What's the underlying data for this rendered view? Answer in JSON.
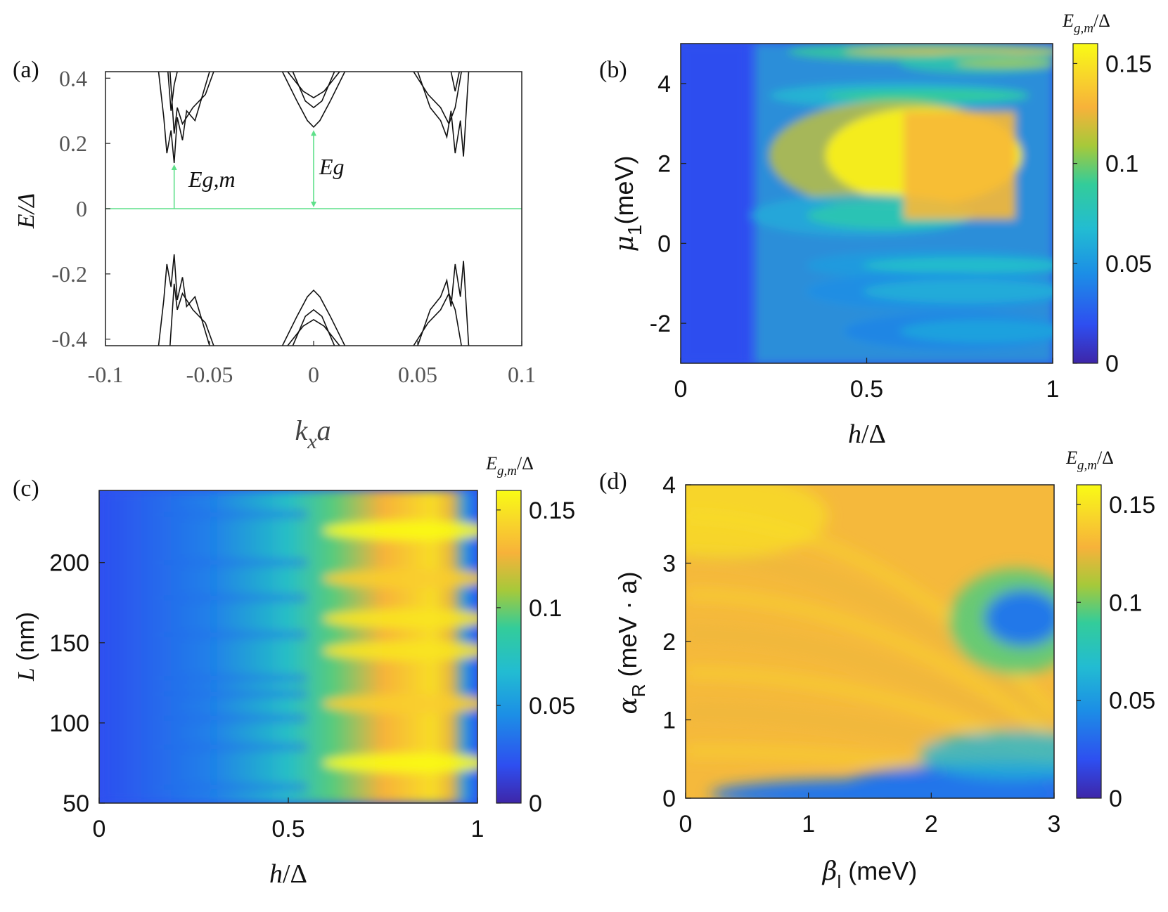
{
  "chart_data": [
    {
      "panel": "(a)",
      "type": "line",
      "xlabel": "k_x a",
      "ylabel": "E/Δ",
      "xlim": [
        -0.1,
        0.1
      ],
      "ylim": [
        -0.42,
        0.42
      ],
      "x_ticks": [
        "-0.1",
        "-0.05",
        "0",
        "0.05",
        "0.1"
      ],
      "y_ticks": [
        "0.4",
        "0.2",
        "0",
        "-0.2",
        "-0.4"
      ],
      "annotations": [
        {
          "text": "Eg,m",
          "x": -0.067,
          "y": 0.14,
          "meaning": "minimum gap at finite k"
        },
        {
          "text": "Eg",
          "x": 0.0,
          "y": 0.245,
          "meaning": "gap at k=0"
        }
      ],
      "zero_line": {
        "y": 0,
        "color": "#5fe08a"
      },
      "arrow_color": "#5fe08a",
      "series": [
        {
          "values": [
            [
              -0.0745,
              0.42
            ],
            [
              -0.072,
              0.28
            ],
            [
              -0.0705,
              0.17
            ],
            [
              -0.0685,
              0.24
            ],
            [
              -0.067,
              0.14
            ],
            [
              -0.0655,
              0.28
            ],
            [
              -0.063,
              0.21
            ],
            [
              -0.061,
              0.3
            ],
            [
              -0.057,
              0.27
            ],
            [
              -0.05,
              0.42
            ]
          ]
        },
        {
          "values": [
            [
              -0.069,
              0.42
            ],
            [
              -0.067,
              0.23
            ],
            [
              -0.0655,
              0.31
            ],
            [
              -0.063,
              0.26
            ],
            [
              -0.058,
              0.31
            ],
            [
              -0.052,
              0.35
            ],
            [
              -0.048,
              0.42
            ]
          ]
        },
        {
          "values": [
            [
              -0.07,
              0.42
            ],
            [
              -0.0685,
              0.3
            ],
            [
              -0.067,
              0.38
            ],
            [
              -0.0655,
              0.42
            ]
          ]
        },
        {
          "values": [
            [
              -0.015,
              0.42
            ],
            [
              -0.008,
              0.33
            ],
            [
              -0.003,
              0.27
            ],
            [
              0.0,
              0.25
            ],
            [
              0.003,
              0.27
            ],
            [
              0.008,
              0.33
            ],
            [
              0.015,
              0.42
            ]
          ]
        },
        {
          "values": [
            [
              -0.01,
              0.42
            ],
            [
              -0.004,
              0.33
            ],
            [
              0.0,
              0.31
            ],
            [
              0.004,
              0.33
            ],
            [
              0.01,
              0.42
            ]
          ]
        },
        {
          "values": [
            [
              -0.0125,
              0.42
            ],
            [
              -0.005,
              0.36
            ],
            [
              0.0,
              0.34
            ],
            [
              0.005,
              0.36
            ],
            [
              0.0125,
              0.42
            ]
          ]
        },
        {
          "values": [
            [
              0.05,
              0.42
            ],
            [
              0.056,
              0.31
            ],
            [
              0.061,
              0.27
            ],
            [
              0.064,
              0.22
            ],
            [
              0.066,
              0.3
            ],
            [
              0.068,
              0.17
            ],
            [
              0.0705,
              0.27
            ],
            [
              0.072,
              0.16
            ],
            [
              0.0745,
              0.42
            ]
          ]
        },
        {
          "values": [
            [
              0.048,
              0.42
            ],
            [
              0.055,
              0.35
            ],
            [
              0.061,
              0.31
            ],
            [
              0.065,
              0.26
            ],
            [
              0.068,
              0.31
            ],
            [
              0.071,
              0.42
            ]
          ]
        },
        {
          "values": [
            [
              0.066,
              0.42
            ],
            [
              0.068,
              0.36
            ],
            [
              0.07,
              0.42
            ]
          ]
        },
        {
          "values": [
            [
              -0.0745,
              -0.42
            ],
            [
              -0.072,
              -0.28
            ],
            [
              -0.0705,
              -0.17
            ],
            [
              -0.0685,
              -0.24
            ],
            [
              -0.067,
              -0.14
            ],
            [
              -0.0655,
              -0.28
            ],
            [
              -0.063,
              -0.21
            ],
            [
              -0.061,
              -0.3
            ],
            [
              -0.057,
              -0.27
            ],
            [
              -0.05,
              -0.42
            ]
          ]
        },
        {
          "values": [
            [
              -0.069,
              -0.42
            ],
            [
              -0.067,
              -0.23
            ],
            [
              -0.0655,
              -0.31
            ],
            [
              -0.063,
              -0.26
            ],
            [
              -0.058,
              -0.31
            ],
            [
              -0.052,
              -0.35
            ],
            [
              -0.048,
              -0.42
            ]
          ]
        },
        {
          "values": [
            [
              -0.015,
              -0.42
            ],
            [
              -0.008,
              -0.33
            ],
            [
              -0.003,
              -0.27
            ],
            [
              0.0,
              -0.25
            ],
            [
              0.003,
              -0.27
            ],
            [
              0.008,
              -0.33
            ],
            [
              0.015,
              -0.42
            ]
          ]
        },
        {
          "values": [
            [
              -0.01,
              -0.42
            ],
            [
              -0.004,
              -0.33
            ],
            [
              0.0,
              -0.31
            ],
            [
              0.004,
              -0.33
            ],
            [
              0.01,
              -0.42
            ]
          ]
        },
        {
          "values": [
            [
              -0.0125,
              -0.42
            ],
            [
              -0.005,
              -0.36
            ],
            [
              0.0,
              -0.34
            ],
            [
              0.005,
              -0.36
            ],
            [
              0.0125,
              -0.42
            ]
          ]
        },
        {
          "values": [
            [
              0.05,
              -0.42
            ],
            [
              0.056,
              -0.31
            ],
            [
              0.061,
              -0.27
            ],
            [
              0.064,
              -0.22
            ],
            [
              0.066,
              -0.3
            ],
            [
              0.068,
              -0.17
            ],
            [
              0.0705,
              -0.27
            ],
            [
              0.072,
              -0.16
            ],
            [
              0.0745,
              -0.42
            ]
          ]
        },
        {
          "values": [
            [
              0.048,
              -0.42
            ],
            [
              0.055,
              -0.35
            ],
            [
              0.061,
              -0.31
            ],
            [
              0.065,
              -0.26
            ],
            [
              0.068,
              -0.31
            ],
            [
              0.071,
              -0.42
            ]
          ]
        }
      ]
    },
    {
      "panel": "(b)",
      "type": "heatmap",
      "xlabel": "h/Δ",
      "ylabel": "μ_1(meV)",
      "xlim": [
        0,
        1
      ],
      "ylim": [
        -3,
        5
      ],
      "x_ticks": [
        "0",
        "0.5",
        "1"
      ],
      "y_ticks": [
        "4",
        "2",
        "0",
        "-2"
      ],
      "colorbar": {
        "title": "E_g,m/Δ",
        "range": [
          0,
          0.16
        ],
        "ticks": [
          "0.15",
          "0.1",
          "0.05",
          "0"
        ]
      },
      "bands": [
        {
          "y": 4.8,
          "x0": 0.25,
          "x1": 1.0,
          "value": 0.12,
          "sigma": 0.08
        },
        {
          "y": 4.5,
          "x0": 0.55,
          "x1": 0.97,
          "value": 0.11,
          "sigma": 0.05
        },
        {
          "y": 3.7,
          "x0": 0.2,
          "x1": 0.9,
          "value": 0.09,
          "sigma": 0.15
        },
        {
          "y": 2.2,
          "x0": 0.2,
          "x1": 0.88,
          "value": 0.155,
          "sigma": 1.2
        },
        {
          "y": 0.7,
          "x0": 0.15,
          "x1": 0.75,
          "value": 0.08,
          "sigma": 0.35
        },
        {
          "y": -0.55,
          "x0": 0.3,
          "x1": 1.0,
          "value": 0.07,
          "sigma": 0.2
        },
        {
          "y": -1.2,
          "x0": 0.3,
          "x1": 1.0,
          "value": 0.06,
          "sigma": 0.3
        },
        {
          "y": -2.2,
          "x0": 0.4,
          "x1": 1.0,
          "value": 0.055,
          "sigma": 0.3
        }
      ]
    },
    {
      "panel": "(c)",
      "type": "heatmap",
      "xlabel": "h/Δ",
      "ylabel": "L (nm)",
      "xlim": [
        0,
        1
      ],
      "ylim": [
        50,
        245
      ],
      "x_ticks": [
        "0",
        "0.5",
        "1"
      ],
      "y_ticks": [
        "200",
        "150",
        "100",
        "50"
      ],
      "colorbar": {
        "title": "E_g,m/Δ",
        "range": [
          0,
          0.16
        ],
        "ticks": [
          "0.15",
          "0.1",
          "0.05",
          "0"
        ]
      },
      "gap_edge_h": 0.93,
      "bands": [
        {
          "y": 220,
          "value": 0.16
        },
        {
          "y": 190,
          "value": 0.14
        },
        {
          "y": 165,
          "value": 0.15
        },
        {
          "y": 145,
          "value": 0.15
        },
        {
          "y": 112,
          "value": 0.14
        },
        {
          "y": 75,
          "value": 0.16
        }
      ]
    },
    {
      "panel": "(d)",
      "type": "heatmap",
      "xlabel": "β_l (meV)",
      "ylabel": "α_R (meV · a)",
      "xlim": [
        0,
        3
      ],
      "ylim": [
        0,
        4
      ],
      "x_ticks": [
        "0",
        "1",
        "2",
        "3"
      ],
      "y_ticks": [
        "4",
        "3",
        "2",
        "1",
        "0"
      ],
      "colorbar": {
        "title": "E_g,m/Δ",
        "range": [
          0,
          0.16
        ],
        "ticks": [
          "0.15",
          "0.1",
          "0.05",
          "0"
        ]
      },
      "features": [
        {
          "kind": "minimum",
          "x": 2.75,
          "y": 2.3,
          "value": 0.04
        },
        {
          "kind": "low_region",
          "x_from": 1.8,
          "y_below": 0.5,
          "value": 0.02
        }
      ]
    }
  ],
  "labels": {
    "panel_a": "(a)",
    "panel_b": "(b)",
    "panel_c": "(c)",
    "panel_d": "(d)",
    "eg_m": "Eg,m",
    "eg": "Eg"
  }
}
